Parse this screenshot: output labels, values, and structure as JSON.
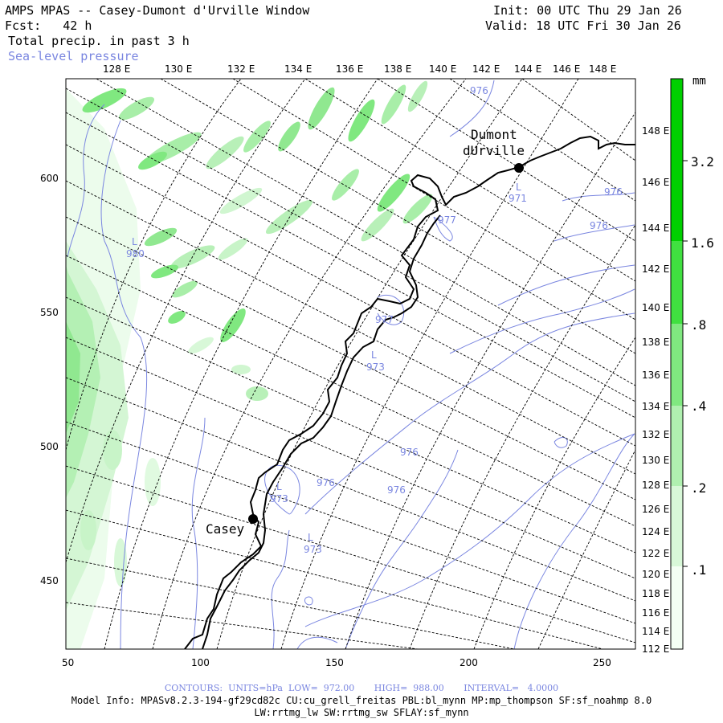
{
  "header": {
    "title": "AMPS MPAS -- Casey-Dumont d'Urville Window",
    "fcst": "Fcst:   42 h",
    "field1": "Total precip. in past 3 h",
    "field2": "Sea-level pressure",
    "init": "Init: 00 UTC Thu 29 Jan 26",
    "valid": "Valid: 18 UTC Fri 30 Jan 26"
  },
  "top_lon_labels": [
    "128 E",
    "130 E",
    "132 E",
    "134 E",
    "136 E",
    "138 E",
    "140 E",
    "142 E",
    "144 E",
    "146 E",
    "148 E"
  ],
  "right_lon_labels": [
    "148 E",
    "146 E",
    "144 E",
    "142 E",
    "140 E",
    "138 E",
    "136 E",
    "134 E",
    "132 E",
    "130 E",
    "128 E",
    "126 E",
    "124 E",
    "122 E",
    "120 E",
    "118 E",
    "116 E",
    "114 E",
    "112 E"
  ],
  "x_ticks": [
    "50",
    "100",
    "150",
    "200",
    "250"
  ],
  "y_ticks": [
    "600",
    "550",
    "500",
    "450"
  ],
  "colorbar": {
    "unit": "mm",
    "levels": [
      ".1",
      ".2",
      ".4",
      ".8",
      "1.6",
      "3.2"
    ],
    "colors": [
      "#f4fff4",
      "#d8f8d8",
      "#b0f0b0",
      "#80e880",
      "#40e040",
      "#00d000"
    ]
  },
  "stations": [
    {
      "name_line1": "Dumont",
      "name_line2": "dUrville"
    },
    {
      "name_line1": "Casey",
      "name_line2": ""
    }
  ],
  "pressure_labels": [
    "976",
    "971",
    "976",
    "976",
    "977",
    "980",
    "977",
    "973",
    "976",
    "976",
    "976",
    "973",
    "973"
  ],
  "low_marker": "L",
  "footer": {
    "contours": "CONTOURS:  UNITS=hPa  LOW=  972.00       HIGH=  988.00       INTERVAL=   4.0000",
    "model_info": "Model Info: MPASv8.2.3-194-gf29cd82c CU:cu_grell_freitas PBL:bl_mynn MP:mp_thompson SF:sf_noahmp 8.0",
    "model_info2": "LW:rrtmg_lw SW:rrtmg_sw SFLAY:sf_mynn"
  }
}
